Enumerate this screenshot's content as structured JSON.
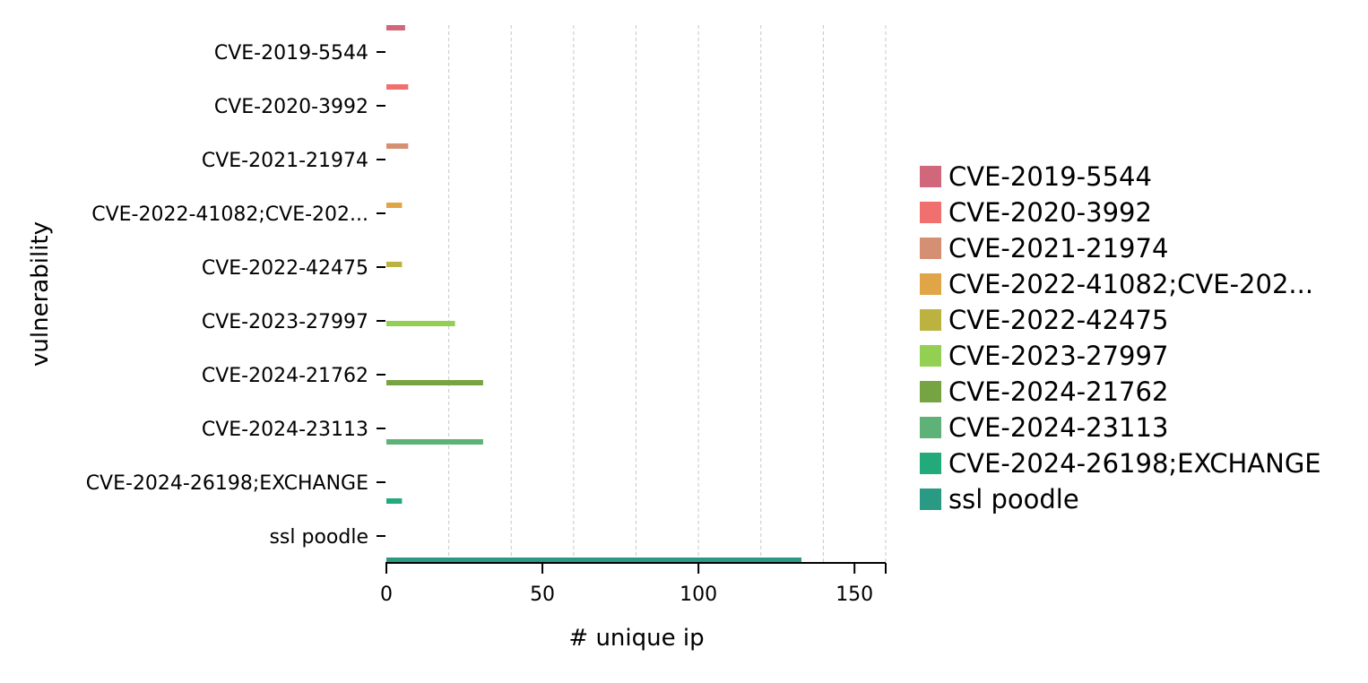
{
  "chart_data": {
    "type": "bar",
    "orientation": "horizontal",
    "xlabel": "# unique ip",
    "ylabel": "vulnerability",
    "xlim": [
      0,
      160
    ],
    "xticks": [
      0,
      50,
      100,
      150
    ],
    "grid": "x, dashed",
    "legend_position": "right",
    "categories": [
      "CVE-2019-5544",
      "CVE-2020-3992",
      "CVE-2021-21974",
      "CVE-2022-41082;CVE-202...",
      "CVE-2022-42475",
      "CVE-2023-27997",
      "CVE-2024-21762",
      "CVE-2024-23113",
      "CVE-2024-26198;EXCHANGE",
      "ssl poodle"
    ],
    "series": [
      {
        "name": "CVE-2019-5544",
        "color": "#d0677a",
        "values": [
          6,
          0,
          0,
          0,
          0,
          0,
          0,
          0,
          0,
          0
        ]
      },
      {
        "name": "CVE-2020-3992",
        "color": "#f07070",
        "values": [
          0,
          7,
          0,
          0,
          0,
          0,
          0,
          0,
          0,
          0
        ]
      },
      {
        "name": "CVE-2021-21974",
        "color": "#d59073",
        "values": [
          0,
          0,
          7,
          0,
          0,
          0,
          0,
          0,
          0,
          0
        ]
      },
      {
        "name": "CVE-2022-41082;CVE-202...",
        "color": "#e0a547",
        "values": [
          0,
          0,
          0,
          5,
          0,
          0,
          0,
          0,
          0,
          0
        ]
      },
      {
        "name": "CVE-2022-42475",
        "color": "#bcb23f",
        "values": [
          0,
          0,
          0,
          0,
          5,
          0,
          0,
          0,
          0,
          0
        ]
      },
      {
        "name": "CVE-2023-27997",
        "color": "#92cf52",
        "values": [
          0,
          0,
          0,
          0,
          0,
          22,
          0,
          0,
          0,
          0
        ]
      },
      {
        "name": "CVE-2024-21762",
        "color": "#77a443",
        "values": [
          0,
          0,
          0,
          0,
          0,
          0,
          31,
          0,
          0,
          0
        ]
      },
      {
        "name": "CVE-2024-23113",
        "color": "#5fb277",
        "values": [
          0,
          0,
          0,
          0,
          0,
          0,
          0,
          31,
          0,
          0
        ]
      },
      {
        "name": "CVE-2024-26198;EXCHANGE",
        "color": "#23aa7a",
        "values": [
          0,
          0,
          0,
          0,
          0,
          0,
          0,
          0,
          5,
          0
        ]
      },
      {
        "name": "ssl poodle",
        "color": "#2a9a85",
        "values": [
          0,
          0,
          0,
          0,
          0,
          0,
          0,
          0,
          0,
          133
        ]
      }
    ]
  }
}
